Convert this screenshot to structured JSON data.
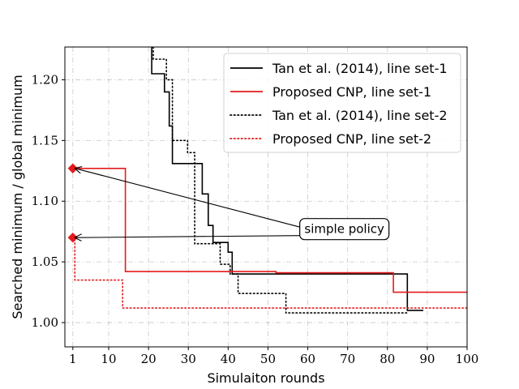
{
  "chart_data": {
    "type": "line",
    "xlabel": "Simulaiton rounds",
    "ylabel": "Searched minimum / global minimum",
    "xlim": [
      -1,
      100
    ],
    "ylim": [
      0.98,
      1.227
    ],
    "x_ticks": [
      1,
      10,
      20,
      30,
      40,
      50,
      60,
      70,
      80,
      90,
      100
    ],
    "y_ticks": [
      1.0,
      1.05,
      1.1,
      1.15,
      1.2
    ],
    "x_tick_labels": [
      "1",
      "10",
      "20",
      "30",
      "40",
      "50",
      "60",
      "70",
      "80",
      "90",
      "100"
    ],
    "y_tick_labels": [
      "1.00",
      "1.05",
      "1.10",
      "1.15",
      "1.20"
    ],
    "grid": true,
    "legend_position": "top-right",
    "series": [
      {
        "name": "Tan et al. (2014), line set-1",
        "color": "#000000",
        "style": "solid",
        "step": "post",
        "points": [
          [
            20.8,
            1.26
          ],
          [
            20.8,
            1.205
          ],
          [
            24,
            1.19
          ],
          [
            25.2,
            1.162
          ],
          [
            26,
            1.131
          ],
          [
            33.5,
            1.106
          ],
          [
            35,
            1.08
          ],
          [
            36.2,
            1.066
          ],
          [
            40,
            1.058
          ],
          [
            41,
            1.04
          ],
          [
            85,
            1.01
          ],
          [
            89,
            1.01
          ]
        ]
      },
      {
        "name": "Proposed CNP, line set-1",
        "color": "#e31a1c",
        "style": "solid",
        "step": "post",
        "points": [
          [
            1,
            1.127
          ],
          [
            14.2,
            1.042
          ],
          [
            52,
            1.041
          ],
          [
            81.5,
            1.025
          ],
          [
            100,
            1.025
          ]
        ]
      },
      {
        "name": "Tan et al. (2014), line set-2",
        "color": "#000000",
        "style": "dotted",
        "step": "post",
        "points": [
          [
            21.2,
            1.26
          ],
          [
            21.2,
            1.217
          ],
          [
            24.5,
            1.2
          ],
          [
            26,
            1.15
          ],
          [
            29.8,
            1.14
          ],
          [
            31.6,
            1.065
          ],
          [
            38,
            1.048
          ],
          [
            40.5,
            1.04
          ],
          [
            42.5,
            1.024
          ],
          [
            54.5,
            1.008
          ],
          [
            85,
            1.008
          ]
        ]
      },
      {
        "name": "Proposed CNP, line set-2",
        "color": "#e31a1c",
        "style": "dotted",
        "step": "post",
        "points": [
          [
            1,
            1.07
          ],
          [
            1.5,
            1.035
          ],
          [
            13.5,
            1.012
          ],
          [
            100,
            1.012
          ]
        ]
      }
    ],
    "markers": [
      {
        "x": 1,
        "y": 1.127,
        "color": "#e31a1c",
        "shape": "diamond"
      },
      {
        "x": 1,
        "y": 1.07,
        "color": "#e31a1c",
        "shape": "diamond"
      }
    ],
    "annotation": {
      "text": "simple policy",
      "box_x": 59,
      "box_y": 1.077,
      "arrow_targets": [
        [
          1,
          1.127
        ],
        [
          1,
          1.07
        ]
      ]
    }
  }
}
